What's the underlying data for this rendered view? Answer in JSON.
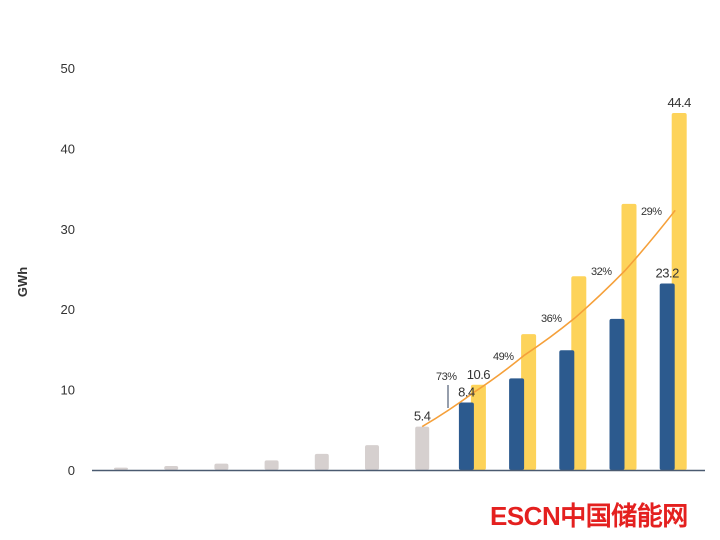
{
  "chart_data": {
    "type": "bar",
    "ylabel": "GWh",
    "ylim": [
      0,
      50
    ],
    "yticks": [
      0,
      10,
      20,
      30,
      40,
      50
    ],
    "grid": false,
    "series": [
      {
        "values": [
          0.3,
          0.5,
          0.8,
          1.2,
          2.0,
          3.1,
          5.4,
          null,
          null,
          null,
          null,
          null
        ],
        "color": "#d6d0cf"
      },
      {
        "values": [
          null,
          null,
          null,
          null,
          null,
          null,
          null,
          8.4,
          11.4,
          14.9,
          18.8,
          23.2
        ],
        "color": "#2c5a8e"
      },
      {
        "values": [
          null,
          null,
          null,
          null,
          null,
          null,
          null,
          10.6,
          16.9,
          24.1,
          33.1,
          44.4
        ],
        "color": "#fdd35a"
      }
    ],
    "trend_line": {
      "values": [
        5.4,
        9.7,
        14.3,
        18.9,
        24.8,
        32.3
      ],
      "color": "#f5a03a",
      "growth_labels": [
        "73%",
        "49%",
        "36%",
        "32%",
        "29%"
      ]
    },
    "data_labels": [
      {
        "text": "5.4",
        "bar": 6,
        "series": 0
      },
      {
        "text": "8.4",
        "bar": 7,
        "series": 1
      },
      {
        "text": "10.6",
        "bar": 7,
        "series": 2
      },
      {
        "text": "23.2",
        "bar": 11,
        "series": 1
      },
      {
        "text": "44.4",
        "bar": 11,
        "series": 2
      }
    ]
  },
  "logo": {
    "text": "ESCN中国储能网",
    "color": "#e4201f"
  }
}
